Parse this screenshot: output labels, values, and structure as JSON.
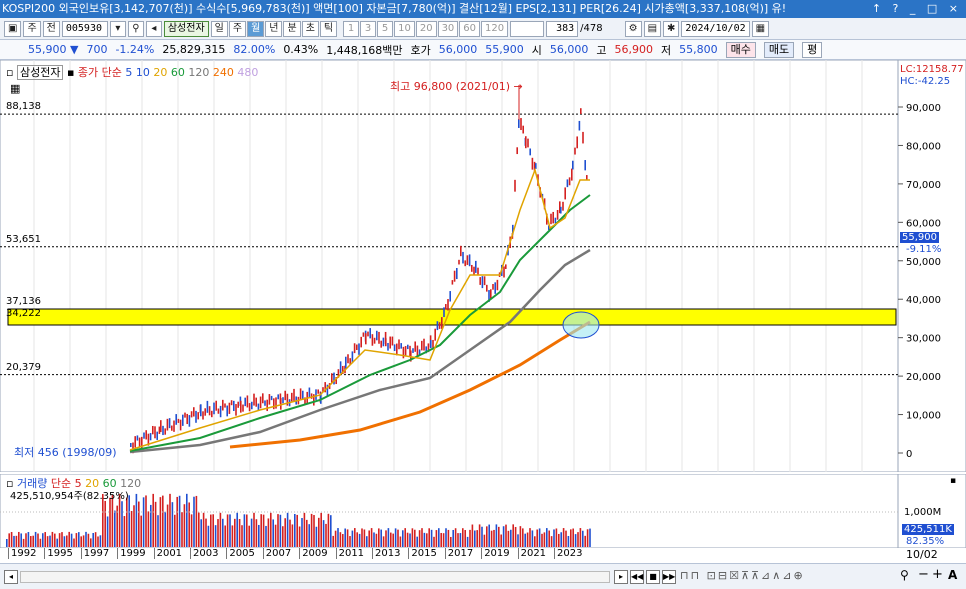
{
  "title_bar": "KOSPI200 외국인보유[3,142,707(천)] 수식수[5,969,783(천)] 액면[100] 자본금[7,780(억)] 결산[12월] EPS[2,131] PER[26.24] 시가총액[3,337,108(억)] 유!",
  "window_controls": "↑ ? _ □ ×",
  "toolbar": {
    "mode_label": "주",
    "all_label": "전",
    "code": "005930",
    "stock_name": "삼성전자",
    "periods": [
      "일",
      "주",
      "월",
      "년",
      "분",
      "초",
      "틱"
    ],
    "active_period": "월",
    "intervals": [
      "1",
      "3",
      "5",
      "10",
      "20",
      "30",
      "60",
      "120"
    ],
    "count": "383",
    "total": "/478",
    "date": "2024/10/02"
  },
  "quote": {
    "price": "55,900 ▼",
    "change": "700",
    "change_pct": "-1.24%",
    "volume": "25,829,315",
    "vol_ratio": "82.00%",
    "turnover": "0.43%",
    "amount": "1,448,168백만",
    "bid_label": "호가",
    "bid": "56,000",
    "ask": "55,900",
    "open_label": "시",
    "open": "56,000",
    "high_label": "고",
    "high": "56,900",
    "low_label": "저",
    "low": "55,800",
    "buy": "매수",
    "sell": "매도",
    "avg": "평"
  },
  "price_legend": {
    "name": "삼성전자",
    "type": "종가 단순",
    "ma": [
      {
        "label": "5",
        "color": "#1f4fd1"
      },
      {
        "label": "10",
        "color": "#1f4fd1"
      },
      {
        "label": "20",
        "color": "#e0a400"
      },
      {
        "label": "60",
        "color": "#1a9a3a"
      },
      {
        "label": "120",
        "color": "#777777"
      },
      {
        "label": "240",
        "color": "#f07000"
      },
      {
        "label": "480",
        "color": "#c0a0e0"
      }
    ]
  },
  "annotations": {
    "high": "최고 96,800 (2021/01) →",
    "low": "최저 456 (1998/09)",
    "lc": "LC:12158.77",
    "hc": "HC:-42.25",
    "last_price": "55,900",
    "last_pct": "-9.11%"
  },
  "left_levels": [
    "88,138",
    "53,651",
    "37,136",
    "34,222",
    "20,379"
  ],
  "y_axis": [
    "90,000",
    "80,000",
    "70,000",
    "60,000",
    "50,000",
    "40,000",
    "30,000",
    "20,000",
    "10,000",
    "0"
  ],
  "volume": {
    "legend_name": "거래량",
    "legend_type": "단순",
    "ma": [
      {
        "label": "5",
        "color": "#d42020"
      },
      {
        "label": "20",
        "color": "#e0a400"
      },
      {
        "label": "60",
        "color": "#1a9a3a"
      },
      {
        "label": "120",
        "color": "#777777"
      }
    ],
    "value": "425,510,954주(82.35%)",
    "axis_label": "1,000M",
    "last": "425,511K",
    "last_pct": "82.35%"
  },
  "x_axis": [
    "1992",
    "1995",
    "1997",
    "1999",
    "2001",
    "2003",
    "2005",
    "2007",
    "2009",
    "2011",
    "2013",
    "2015",
    "2017",
    "2019",
    "2021",
    "2023"
  ],
  "x_corner": "10/02",
  "chart_data": {
    "type": "candlestick-monthly",
    "series": [
      {
        "name": "5",
        "values": []
      }
    ],
    "ylim": [
      0,
      100000
    ],
    "reference_levels": [
      88138,
      53651,
      37136,
      34222,
      20379
    ],
    "highlight_band": [
      34222,
      37136
    ],
    "max_point": {
      "value": 96800,
      "date": "2021/01"
    },
    "min_point": {
      "value": 456,
      "date": "1998/09"
    },
    "last_close": 55900
  }
}
